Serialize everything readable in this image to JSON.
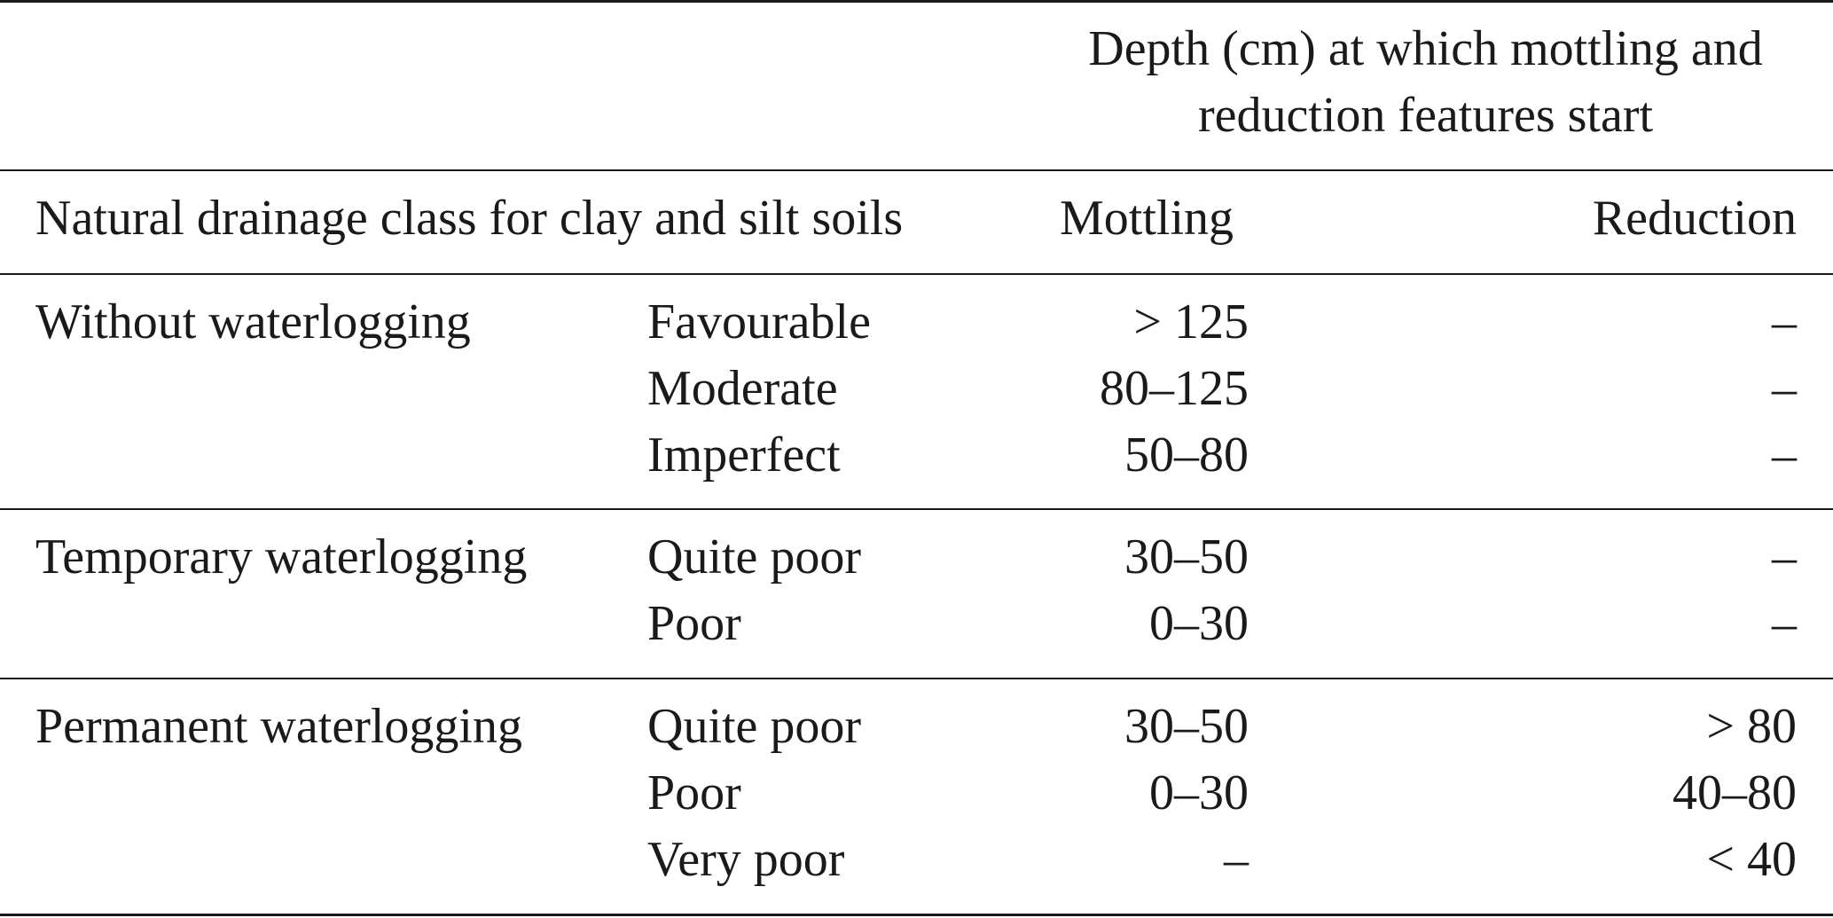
{
  "table": {
    "spanner_header": "Depth (cm) at which mottling and reduction features start",
    "column_headers": {
      "class": "Natural drainage class for clay and silt soils",
      "mottling": "Mottling",
      "reduction": "Reduction"
    },
    "groups": [
      {
        "name": "Without waterlogging",
        "rows": [
          {
            "subclass": "Favourable",
            "mottling": "> 125",
            "reduction": "–"
          },
          {
            "subclass": "Moderate",
            "mottling": "80–125",
            "reduction": "–"
          },
          {
            "subclass": "Imperfect",
            "mottling": "50–80",
            "reduction": "–"
          }
        ]
      },
      {
        "name": "Temporary waterlogging",
        "rows": [
          {
            "subclass": "Quite poor",
            "mottling": "30–50",
            "reduction": "–"
          },
          {
            "subclass": "Poor",
            "mottling": "0–30",
            "reduction": "–"
          }
        ]
      },
      {
        "name": "Permanent waterlogging",
        "rows": [
          {
            "subclass": "Quite poor",
            "mottling": "30–50",
            "reduction": "> 80"
          },
          {
            "subclass": "Poor",
            "mottling": "0–30",
            "reduction": "40–80"
          },
          {
            "subclass": "Very poor",
            "mottling": "–",
            "reduction": "< 40"
          }
        ]
      }
    ]
  }
}
